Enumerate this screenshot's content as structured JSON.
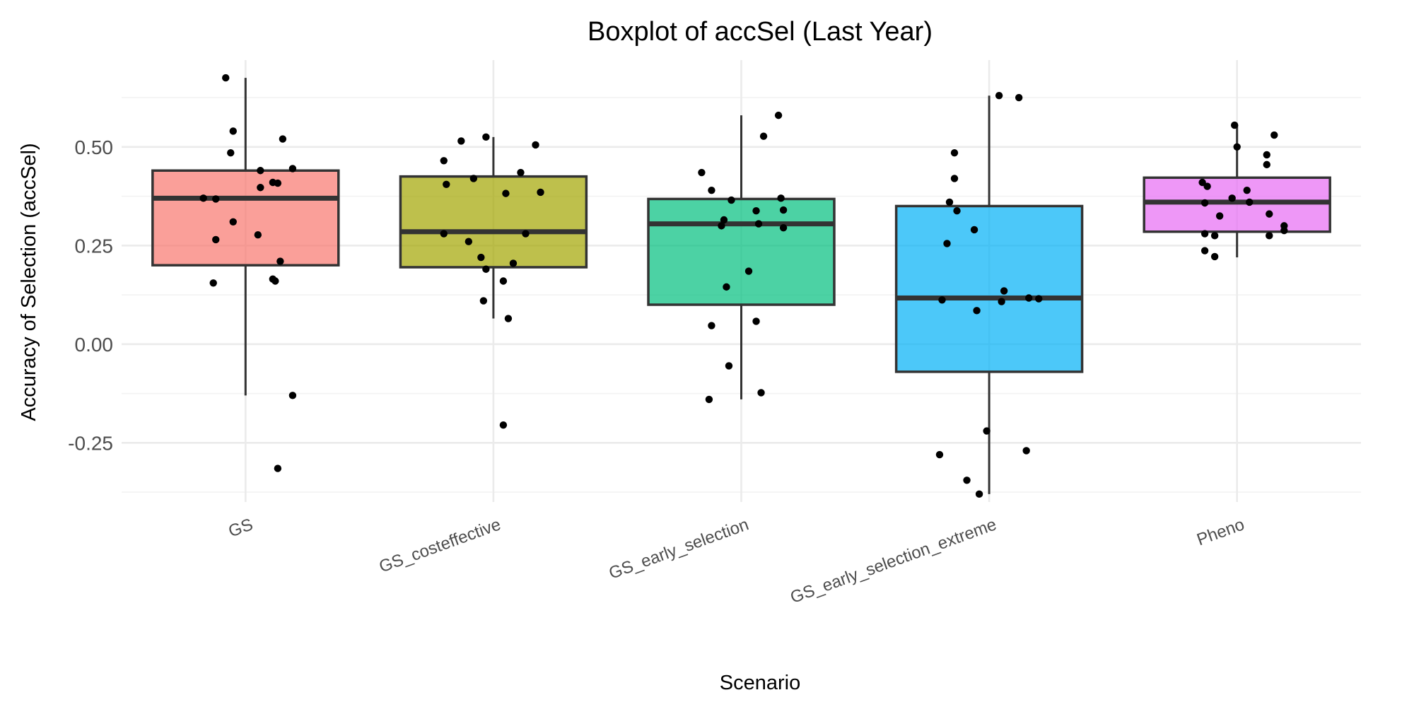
{
  "chart_data": {
    "type": "boxplot",
    "title": "Boxplot of accSel (Last Year)",
    "xlabel": "Scenario",
    "ylabel": "Accuracy of Selection (accSel)",
    "ylim": [
      -0.4,
      0.72
    ],
    "yticks": [
      -0.25,
      0.0,
      0.25,
      0.5
    ],
    "ytick_labels": [
      "-0.25",
      "0.00",
      "0.25",
      "0.50"
    ],
    "grid": true,
    "legend": "none",
    "categories": [
      "GS",
      "GS_costeffective",
      "GS_early_selection",
      "GS_early_selection_extreme",
      "Pheno"
    ],
    "colors": [
      "#F8766D",
      "#A3A500",
      "#00BF7D",
      "#00B0F6",
      "#E76BF3"
    ],
    "boxes": [
      {
        "q1": 0.2,
        "median": 0.37,
        "q3": 0.44,
        "lower": -0.13,
        "upper": 0.675
      },
      {
        "q1": 0.195,
        "median": 0.285,
        "q3": 0.425,
        "lower": 0.065,
        "upper": 0.525
      },
      {
        "q1": 0.1,
        "median": 0.305,
        "q3": 0.368,
        "lower": -0.14,
        "upper": 0.58
      },
      {
        "q1": -0.07,
        "median": 0.117,
        "q3": 0.35,
        "lower": -0.38,
        "upper": 0.63
      },
      {
        "q1": 0.285,
        "median": 0.36,
        "q3": 0.422,
        "lower": 0.22,
        "upper": 0.555
      }
    ],
    "points": [
      {
        "category": 0,
        "values": [
          0.675,
          0.54,
          0.485,
          0.52,
          0.445,
          0.44,
          0.41,
          0.408,
          0.397,
          0.37,
          0.368,
          0.31,
          0.277,
          0.265,
          0.21,
          0.165,
          0.16,
          0.155,
          -0.13,
          -0.315
        ],
        "jitter": [
          -0.08,
          -0.05,
          -0.06,
          0.15,
          0.19,
          0.06,
          0.11,
          0.13,
          0.06,
          -0.17,
          -0.12,
          -0.05,
          0.05,
          -0.12,
          0.14,
          0.11,
          0.12,
          -0.13,
          0.19,
          0.13
        ]
      },
      {
        "category": 1,
        "values": [
          0.525,
          0.515,
          0.505,
          0.465,
          0.435,
          0.42,
          0.405,
          0.385,
          0.382,
          0.28,
          0.28,
          0.26,
          0.22,
          0.205,
          0.19,
          0.16,
          0.11,
          0.065,
          -0.205
        ],
        "jitter": [
          -0.03,
          -0.13,
          0.17,
          -0.2,
          0.11,
          -0.08,
          -0.19,
          0.19,
          0.05,
          0.13,
          -0.2,
          -0.1,
          -0.05,
          0.08,
          -0.03,
          0.04,
          -0.04,
          0.06,
          0.04
        ]
      },
      {
        "category": 2,
        "values": [
          0.58,
          0.527,
          0.435,
          0.39,
          0.37,
          0.365,
          0.34,
          0.338,
          0.315,
          0.305,
          0.3,
          0.295,
          0.185,
          0.145,
          0.058,
          0.047,
          -0.055,
          -0.123,
          -0.14
        ],
        "jitter": [
          0.15,
          0.09,
          -0.16,
          -0.12,
          0.16,
          -0.04,
          0.17,
          0.06,
          -0.07,
          0.07,
          -0.08,
          0.17,
          0.03,
          -0.06,
          0.06,
          -0.12,
          -0.05,
          0.08,
          -0.13
        ]
      },
      {
        "category": 3,
        "values": [
          0.63,
          0.625,
          0.485,
          0.42,
          0.36,
          0.338,
          0.29,
          0.255,
          0.135,
          0.117,
          0.115,
          0.112,
          0.108,
          0.085,
          -0.22,
          -0.27,
          -0.28,
          -0.345,
          -0.38
        ],
        "jitter": [
          0.04,
          0.12,
          -0.14,
          -0.14,
          -0.16,
          -0.13,
          -0.06,
          -0.17,
          0.06,
          0.16,
          0.2,
          -0.19,
          0.05,
          -0.05,
          -0.01,
          0.15,
          -0.2,
          -0.09,
          -0.04
        ]
      },
      {
        "category": 4,
        "values": [
          0.555,
          0.53,
          0.5,
          0.48,
          0.455,
          0.41,
          0.4,
          0.39,
          0.37,
          0.36,
          0.358,
          0.33,
          0.325,
          0.3,
          0.288,
          0.28,
          0.275,
          0.275,
          0.237,
          0.222
        ],
        "jitter": [
          -0.01,
          0.15,
          0.0,
          0.12,
          0.12,
          -0.14,
          -0.12,
          0.04,
          -0.02,
          0.05,
          -0.13,
          0.13,
          -0.07,
          0.19,
          0.19,
          -0.13,
          -0.09,
          0.13,
          -0.13,
          -0.09
        ]
      }
    ]
  }
}
